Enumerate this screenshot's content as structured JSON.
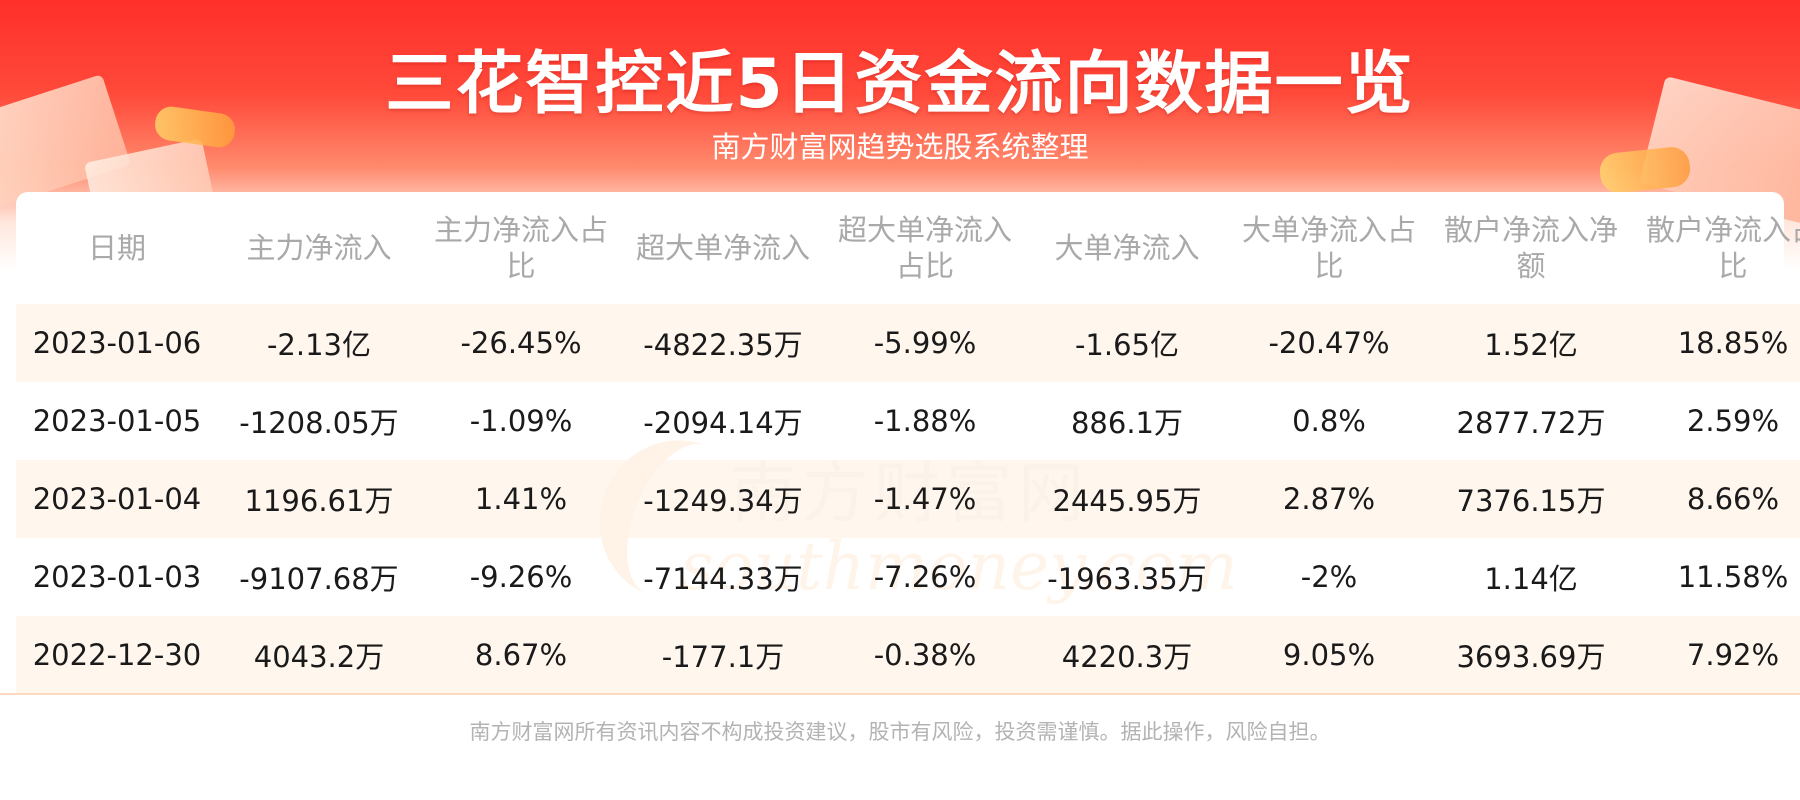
{
  "header": {
    "title": "三花智控近5日资金流向数据一览",
    "subtitle": "南方财富网趋势选股系统整理"
  },
  "watermark": {
    "cn": "南方财富网",
    "en": "southmoney.com"
  },
  "table": {
    "columns": [
      "日期",
      "主力净流入",
      "主力净流入占比",
      "超大单净流入",
      "超大单净流入占比",
      "大单净流入",
      "大单净流入占比",
      "散户净流入净额",
      "散户净流入占比"
    ],
    "rows": [
      [
        "2023-01-06",
        "-2.13亿",
        "-26.45%",
        "-4822.35万",
        "-5.99%",
        "-1.65亿",
        "-20.47%",
        "1.52亿",
        "18.85%"
      ],
      [
        "2023-01-05",
        "-1208.05万",
        "-1.09%",
        "-2094.14万",
        "-1.88%",
        "886.1万",
        "0.8%",
        "2877.72万",
        "2.59%"
      ],
      [
        "2023-01-04",
        "1196.61万",
        "1.41%",
        "-1249.34万",
        "-1.47%",
        "2445.95万",
        "2.87%",
        "7376.15万",
        "8.66%"
      ],
      [
        "2023-01-03",
        "-9107.68万",
        "-9.26%",
        "-7144.33万",
        "-7.26%",
        "-1963.35万",
        "-2%",
        "1.14亿",
        "11.58%"
      ],
      [
        "2022-12-30",
        "4043.2万",
        "8.67%",
        "-177.1万",
        "-0.38%",
        "4220.3万",
        "9.05%",
        "3693.69万",
        "7.92%"
      ]
    ]
  },
  "footer": {
    "disclaimer": "南方财富网所有资讯内容不构成投资建议，股市有风险，投资需谨慎。据此操作，风险自担。"
  },
  "colors": {
    "banner_red": "#ff2f2a",
    "header_text": "#a9a9a9",
    "row_tint": "#fff3e8"
  }
}
